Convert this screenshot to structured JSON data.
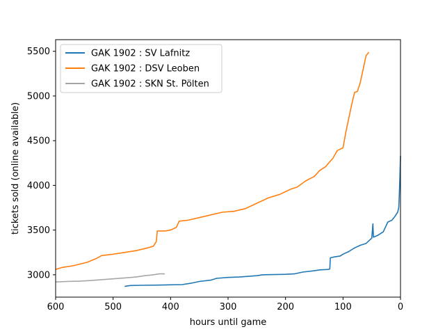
{
  "chart_data": {
    "type": "line",
    "title": "",
    "xlabel": "hours until game",
    "ylabel": "tickets sold (online available)",
    "xlim": [
      600,
      0
    ],
    "ylim": [
      2750,
      5630
    ],
    "x_ticks": [
      600,
      500,
      400,
      300,
      200,
      100,
      0
    ],
    "y_ticks": [
      3000,
      3500,
      4000,
      4500,
      5000,
      5500
    ],
    "grid": false,
    "legend_position": "top-left",
    "series": [
      {
        "name": "GAK 1902 : SV Lafnitz",
        "color": "#1f77b4",
        "points": [
          [
            480,
            2870
          ],
          [
            470,
            2880
          ],
          [
            450,
            2882
          ],
          [
            420,
            2885
          ],
          [
            400,
            2888
          ],
          [
            380,
            2890
          ],
          [
            365,
            2905
          ],
          [
            350,
            2925
          ],
          [
            330,
            2940
          ],
          [
            320,
            2960
          ],
          [
            300,
            2970
          ],
          [
            280,
            2975
          ],
          [
            260,
            2985
          ],
          [
            250,
            2990
          ],
          [
            240,
            3000
          ],
          [
            220,
            3002
          ],
          [
            200,
            3005
          ],
          [
            185,
            3010
          ],
          [
            170,
            3030
          ],
          [
            150,
            3045
          ],
          [
            140,
            3055
          ],
          [
            125,
            3060
          ],
          [
            123,
            3065
          ],
          [
            122,
            3190
          ],
          [
            115,
            3200
          ],
          [
            105,
            3210
          ],
          [
            100,
            3230
          ],
          [
            90,
            3260
          ],
          [
            80,
            3300
          ],
          [
            70,
            3330
          ],
          [
            60,
            3350
          ],
          [
            55,
            3380
          ],
          [
            50,
            3410
          ],
          [
            48,
            3570
          ],
          [
            47,
            3420
          ],
          [
            40,
            3440
          ],
          [
            30,
            3480
          ],
          [
            22,
            3590
          ],
          [
            15,
            3610
          ],
          [
            10,
            3650
          ],
          [
            5,
            3700
          ],
          [
            3,
            3750
          ],
          [
            2,
            3900
          ],
          [
            1,
            4100
          ],
          [
            0,
            4330
          ]
        ]
      },
      {
        "name": "GAK 1902 : DSV Leoben",
        "color": "#ff7f0e",
        "points": [
          [
            600,
            3060
          ],
          [
            590,
            3080
          ],
          [
            570,
            3100
          ],
          [
            545,
            3140
          ],
          [
            530,
            3180
          ],
          [
            520,
            3215
          ],
          [
            500,
            3230
          ],
          [
            480,
            3250
          ],
          [
            460,
            3270
          ],
          [
            440,
            3300
          ],
          [
            430,
            3320
          ],
          [
            425,
            3370
          ],
          [
            423,
            3490
          ],
          [
            410,
            3490
          ],
          [
            400,
            3500
          ],
          [
            390,
            3530
          ],
          [
            385,
            3600
          ],
          [
            370,
            3610
          ],
          [
            350,
            3640
          ],
          [
            330,
            3670
          ],
          [
            310,
            3700
          ],
          [
            290,
            3710
          ],
          [
            270,
            3740
          ],
          [
            250,
            3800
          ],
          [
            230,
            3860
          ],
          [
            210,
            3900
          ],
          [
            190,
            3960
          ],
          [
            180,
            3980
          ],
          [
            165,
            4050
          ],
          [
            150,
            4100
          ],
          [
            140,
            4170
          ],
          [
            130,
            4210
          ],
          [
            125,
            4250
          ],
          [
            118,
            4300
          ],
          [
            110,
            4390
          ],
          [
            100,
            4420
          ],
          [
            95,
            4600
          ],
          [
            85,
            4900
          ],
          [
            80,
            5040
          ],
          [
            75,
            5050
          ],
          [
            70,
            5150
          ],
          [
            65,
            5300
          ],
          [
            60,
            5450
          ],
          [
            55,
            5490
          ]
        ]
      },
      {
        "name": "GAK 1902 : SKN St. Pölten",
        "color": "#a6a6a6",
        "points": [
          [
            600,
            2920
          ],
          [
            580,
            2925
          ],
          [
            560,
            2928
          ],
          [
            540,
            2935
          ],
          [
            520,
            2945
          ],
          [
            500,
            2955
          ],
          [
            480,
            2965
          ],
          [
            460,
            2975
          ],
          [
            445,
            2990
          ],
          [
            430,
            3000
          ],
          [
            420,
            3010
          ],
          [
            410,
            3010
          ]
        ]
      }
    ]
  }
}
